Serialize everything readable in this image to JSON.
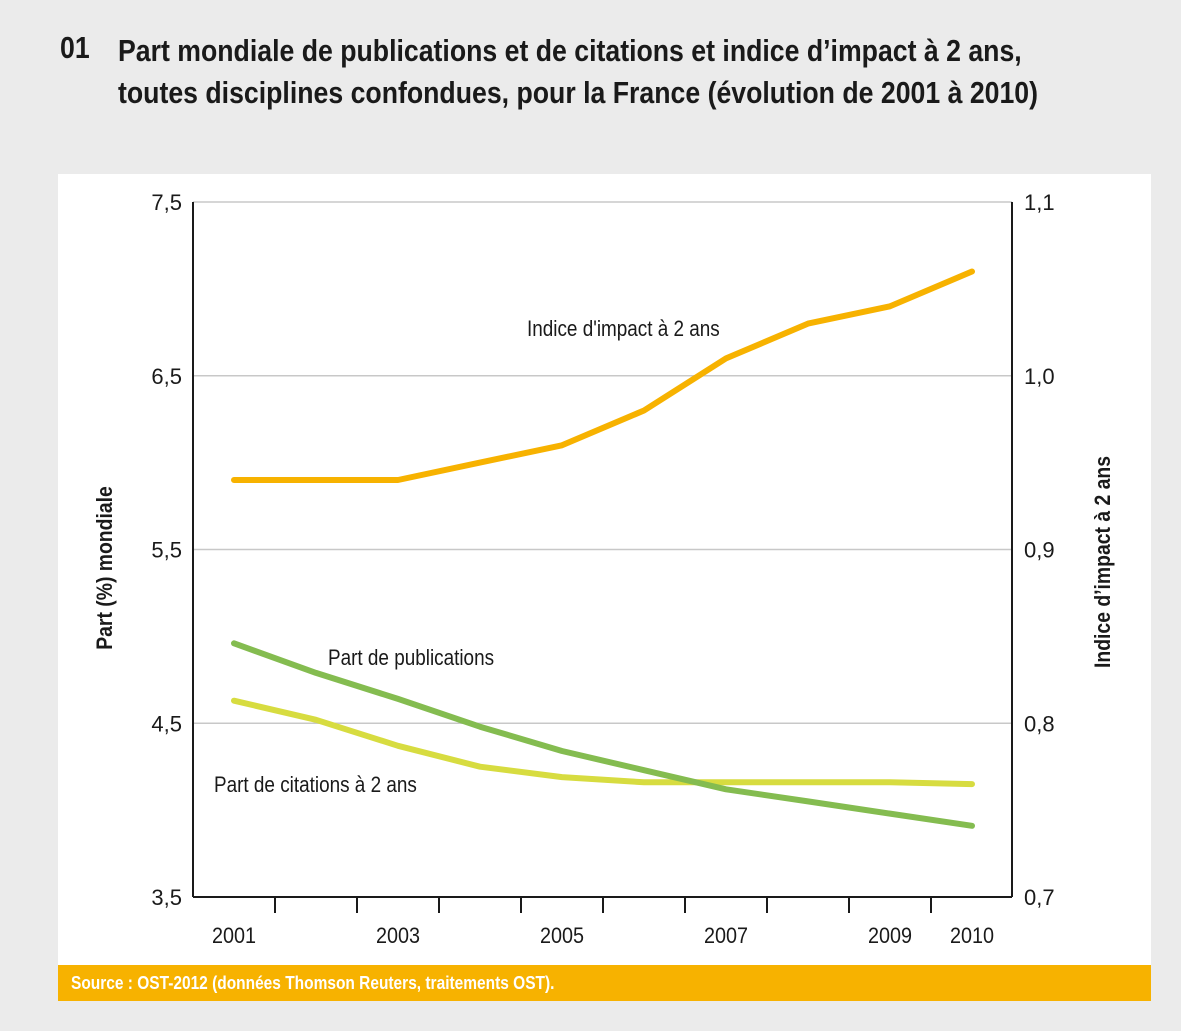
{
  "header": {
    "number": "01",
    "title": "Part mondiale de publications et de citations et indice d’impact à 2 ans, toutes disciplines confondues, pour la France (évolution de 2001 à 2010)"
  },
  "footer": {
    "source": "Source : OST-2012 (données Thomson Reuters, traitements OST)."
  },
  "colors": {
    "background": "#ebebeb",
    "impact": "#f7b200",
    "publications": "#84bc50",
    "citations": "#d7dc40",
    "source_bar": "#f7b200",
    "grid": "#c8c8c8",
    "axis": "#1a1a1a"
  },
  "chart_data": {
    "type": "line",
    "title": "Part mondiale de publications et de citations et indice d’impact à 2 ans, toutes disciplines confondues, pour la France (évolution de 2001 à 2010)",
    "x": [
      2001,
      2002,
      2003,
      2004,
      2005,
      2006,
      2007,
      2008,
      2009,
      2010
    ],
    "x_tick_labels": [
      "2001",
      "2003",
      "2005",
      "2007",
      "2009",
      "2010"
    ],
    "x_tick_label_years": [
      2001,
      2003,
      2005,
      2007,
      2009,
      2010
    ],
    "xlabel": "",
    "ylabel": "Part (%) mondiale",
    "ylim": [
      3.5,
      7.5
    ],
    "y_ticks": [
      "3,5",
      "4,5",
      "5,5",
      "6,5",
      "7,5"
    ],
    "y_tick_values": [
      3.5,
      4.5,
      5.5,
      6.5,
      7.5
    ],
    "y2label": "Indice d’impact à 2 ans",
    "y2lim": [
      0.7,
      1.1
    ],
    "y2_ticks": [
      "0,7",
      "0,8",
      "0,9",
      "1,0",
      "1,1"
    ],
    "y2_tick_values": [
      0.7,
      0.8,
      0.9,
      1.0,
      1.1
    ],
    "grid": true,
    "legend": "inline-labels",
    "series": [
      {
        "name": "Indice d'impact à 2 ans",
        "axis": "right",
        "color": "#f7b200",
        "values": [
          0.94,
          0.94,
          0.94,
          0.95,
          0.96,
          0.98,
          1.01,
          1.03,
          1.04,
          1.06
        ]
      },
      {
        "name": "Part de publications",
        "axis": "left",
        "color": "#84bc50",
        "values": [
          4.96,
          4.79,
          4.64,
          4.48,
          4.34,
          4.23,
          4.12,
          4.05,
          3.98,
          3.91
        ]
      },
      {
        "name": "Part de citations à 2 ans",
        "axis": "left",
        "color": "#d7dc40",
        "values": [
          4.63,
          4.52,
          4.37,
          4.25,
          4.19,
          4.16,
          4.16,
          4.16,
          4.16,
          4.15
        ]
      }
    ]
  }
}
